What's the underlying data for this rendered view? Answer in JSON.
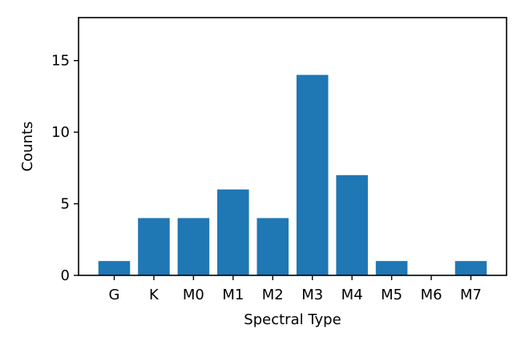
{
  "chart_data": {
    "type": "bar",
    "title": "",
    "xlabel": "Spectral Type",
    "ylabel": "Counts",
    "categories": [
      "G",
      "K",
      "M0",
      "M1",
      "M2",
      "M3",
      "M4",
      "M5",
      "M6",
      "M7"
    ],
    "values": [
      1,
      4,
      4,
      6,
      4,
      14,
      7,
      1,
      0,
      1
    ],
    "ylim": [
      0,
      18
    ],
    "yticks": [
      0,
      5,
      10,
      15
    ],
    "bar_color": "#1f77b4",
    "grid": false,
    "legend": "none"
  }
}
